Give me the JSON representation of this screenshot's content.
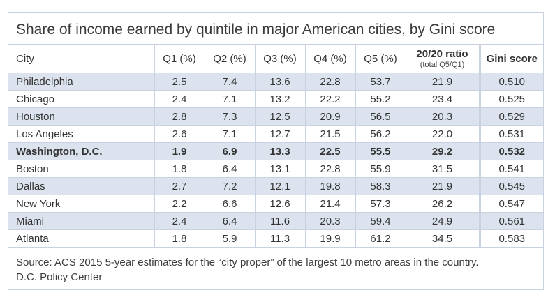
{
  "chart_data": {
    "type": "table",
    "title": "Share of income earned by quintile in major American cities, by Gini score",
    "columns": [
      "City",
      "Q1 (%)",
      "Q2 (%)",
      "Q3 (%)",
      "Q4 (%)",
      "Q5 (%)",
      "20/20 ratio",
      "Gini score"
    ],
    "ratio_subtitle": "(total Q5/Q1)",
    "rows": [
      [
        "Philadelphia",
        "2.5",
        "7.4",
        "13.6",
        "22.8",
        "53.7",
        "21.9",
        "0.510"
      ],
      [
        "Chicago",
        "2.4",
        "7.1",
        "13.2",
        "22.2",
        "55.2",
        "23.4",
        "0.525"
      ],
      [
        "Houston",
        "2.8",
        "7.3",
        "12.5",
        "20.9",
        "56.5",
        "20.3",
        "0.529"
      ],
      [
        "Los Angeles",
        "2.6",
        "7.1",
        "12.7",
        "21.5",
        "56.2",
        "22.0",
        "0.531"
      ],
      [
        "Washington, D.C.",
        "1.9",
        "6.9",
        "13.3",
        "22.5",
        "55.5",
        "29.2",
        "0.532"
      ],
      [
        "Boston",
        "1.8",
        "6.4",
        "13.1",
        "22.8",
        "55.9",
        "31.5",
        "0.541"
      ],
      [
        "Dallas",
        "2.7",
        "7.2",
        "12.1",
        "19.8",
        "58.3",
        "21.9",
        "0.545"
      ],
      [
        "New York",
        "2.2",
        "6.6",
        "12.6",
        "21.4",
        "57.3",
        "26.2",
        "0.547"
      ],
      [
        "Miami",
        "2.4",
        "6.4",
        "11.6",
        "20.3",
        "59.4",
        "24.9",
        "0.561"
      ],
      [
        "Atlanta",
        "1.8",
        "5.9",
        "11.3",
        "19.9",
        "61.2",
        "34.5",
        "0.583"
      ]
    ],
    "highlight_row": "Washington, D.C.",
    "source": "Source: ACS 2015 5-year estimates for the “city proper” of the largest 10 metro areas in the country.",
    "credit": "D.C. Policy Center"
  },
  "colors": {
    "shade": "#dce3ee",
    "border": "#c9d3e0"
  }
}
